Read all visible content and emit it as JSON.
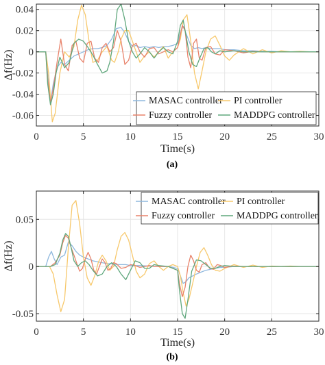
{
  "colors": {
    "MASAC controller": "#8fb8de",
    "PI controller": "#f7c86b",
    "Fuzzy controller": "#e8826a",
    "MADDPG controller": "#5fa77c"
  },
  "chart_data": [
    {
      "type": "line",
      "caption": "(a)",
      "xlabel": "Time(s)",
      "ylabel": "Δf(Hz)",
      "xlim": [
        0,
        30
      ],
      "ylim": [
        -0.07,
        0.045
      ],
      "xticks": [
        0,
        5,
        10,
        15,
        20,
        25,
        30
      ],
      "xtick_labels": [
        "0",
        "5",
        "10",
        "15",
        "20",
        "25",
        "30"
      ],
      "yticks": [
        -0.06,
        -0.04,
        -0.02,
        0,
        0.02,
        0.04
      ],
      "ytick_labels": [
        "-0.06",
        "-0.04",
        "-0.02",
        "0",
        "0.02",
        "0.04"
      ],
      "grid": true,
      "legend": [
        "MASAC controller",
        "PI controller",
        "Fuzzy controller",
        "MADDPG controller"
      ],
      "legend_position": "bottom-right",
      "series": [
        {
          "name": "MASAC controller",
          "x": [
            0,
            1,
            1.2,
            1.5,
            1.8,
            2.2,
            2.6,
            3.0,
            3.5,
            4.0,
            4.5,
            5.0,
            5.5,
            6.0,
            6.5,
            7.0,
            7.5,
            8.0,
            8.5,
            9.0,
            9.4,
            9.8,
            10.2,
            10.6,
            11.0,
            11.5,
            12.0,
            12.5,
            13.0,
            13.5,
            14.0,
            14.5,
            15.0,
            15.3,
            15.6,
            16.0,
            16.4,
            16.8,
            17.2,
            17.6,
            18.0,
            18.5,
            19.0,
            19.5,
            20.0,
            21,
            22,
            23,
            24,
            25,
            26,
            27,
            28,
            29,
            30
          ],
          "y": [
            0,
            0,
            -0.02,
            -0.048,
            -0.03,
            -0.015,
            -0.01,
            -0.012,
            -0.008,
            -0.004,
            -0.002,
            0.0,
            0.002,
            0.003,
            0.003,
            0.004,
            0.006,
            0.012,
            0.022,
            0.023,
            0.018,
            0.01,
            0.005,
            0.006,
            0.004,
            0.005,
            0.004,
            0.005,
            0.004,
            0.005,
            0.005,
            0.006,
            0.008,
            0.018,
            0.024,
            0.015,
            0.006,
            0.003,
            0.004,
            0.003,
            0.004,
            0.003,
            0.003,
            0.003,
            0.002,
            0.002,
            0.001,
            0.001,
            0.0005,
            0.0005,
            0.0,
            0.0,
            0.0,
            0.0,
            0.0
          ]
        },
        {
          "name": "PI controller",
          "x": [
            0,
            1,
            1.3,
            1.7,
            2.0,
            2.5,
            3.0,
            3.5,
            4.0,
            4.4,
            4.8,
            5.2,
            5.6,
            6.0,
            6.5,
            7.0,
            7.5,
            8.0,
            8.3,
            8.7,
            9.0,
            9.4,
            9.8,
            10.2,
            10.6,
            11.0,
            11.5,
            12.0,
            12.5,
            13.0,
            13.5,
            14.0,
            14.5,
            15.0,
            15.3,
            15.6,
            16.0,
            16.4,
            16.8,
            17.2,
            17.6,
            18.0,
            18.5,
            19.0,
            19.5,
            20.0,
            20.5,
            21.0,
            22,
            23,
            24,
            25,
            26,
            27,
            28,
            29,
            30
          ],
          "y": [
            0,
            0,
            -0.02,
            -0.066,
            -0.058,
            -0.02,
            0.0,
            -0.005,
            0.005,
            0.03,
            0.044,
            0.035,
            0.01,
            -0.01,
            -0.008,
            0.0,
            0.005,
            -0.008,
            -0.01,
            0.0,
            0.012,
            0.02,
            0.02,
            0.01,
            0.0,
            -0.01,
            -0.004,
            0.0,
            -0.005,
            0.0,
            0.005,
            -0.006,
            0.0,
            0.004,
            0.012,
            0.03,
            0.035,
            0.01,
            -0.02,
            -0.035,
            -0.018,
            0.0,
            0.012,
            0.015,
            0.006,
            -0.004,
            -0.008,
            -0.003,
            0.003,
            -0.002,
            0.002,
            -0.001,
            0.001,
            0.0,
            0.0005,
            0.0,
            0.0
          ]
        },
        {
          "name": "Fuzzy controller",
          "x": [
            0,
            1,
            1.2,
            1.5,
            1.8,
            2.2,
            2.6,
            3.0,
            3.4,
            3.8,
            4.2,
            4.6,
            5.0,
            5.4,
            5.8,
            6.2,
            6.6,
            7.0,
            7.4,
            7.8,
            8.2,
            8.6,
            9.0,
            9.4,
            9.8,
            10.2,
            10.6,
            11.0,
            11.5,
            12.0,
            12.5,
            13.0,
            13.5,
            14.0,
            14.5,
            15.0,
            15.2,
            15.5,
            15.8,
            16.1,
            16.4,
            16.7,
            17.0,
            17.3,
            17.6,
            18.0,
            18.5,
            19.0,
            19.5,
            20.0,
            21,
            22,
            23,
            24,
            25,
            26,
            27,
            28,
            29,
            30
          ],
          "y": [
            0,
            0,
            -0.025,
            -0.048,
            -0.035,
            -0.01,
            0.012,
            -0.012,
            -0.018,
            0.006,
            0.01,
            -0.006,
            -0.01,
            0.008,
            0.01,
            -0.006,
            -0.01,
            0.004,
            0.008,
            0.0,
            0.004,
            0.02,
            0.01,
            -0.012,
            -0.008,
            0.006,
            0.008,
            0.0,
            -0.005,
            0.003,
            0.004,
            -0.002,
            0.0,
            0.002,
            0.0,
            0.004,
            0.012,
            0.025,
            0.02,
            -0.005,
            -0.015,
            0.008,
            0.012,
            -0.006,
            -0.008,
            0.004,
            0.005,
            -0.002,
            -0.003,
            0.002,
            0.001,
            -0.001,
            0.0005,
            0.0,
            0.0,
            0.0,
            0.0,
            0.0,
            0.0,
            0.0
          ]
        },
        {
          "name": "MADDPG controller",
          "x": [
            0,
            1,
            1.2,
            1.5,
            1.8,
            2.1,
            2.5,
            3.0,
            3.5,
            4.0,
            4.5,
            5.0,
            5.5,
            6.0,
            6.5,
            7.0,
            7.5,
            7.8,
            8.2,
            8.6,
            9.0,
            9.4,
            9.8,
            10.2,
            10.6,
            11.0,
            11.5,
            12.0,
            12.5,
            13.0,
            13.5,
            14.0,
            14.5,
            15.0,
            15.3,
            15.6,
            15.9,
            16.2,
            16.6,
            17.0,
            17.4,
            17.8,
            18.2,
            18.6,
            19.0,
            19.5,
            20.0,
            21,
            22,
            23,
            24,
            25,
            26,
            27,
            28,
            29,
            30
          ],
          "y": [
            0,
            0,
            -0.03,
            -0.05,
            -0.04,
            -0.02,
            -0.005,
            -0.015,
            -0.01,
            0.008,
            0.012,
            0.01,
            0.004,
            -0.003,
            -0.012,
            -0.02,
            -0.018,
            -0.01,
            0.01,
            0.04,
            0.045,
            0.03,
            0.01,
            0.0,
            -0.006,
            -0.002,
            0.004,
            0.0,
            -0.006,
            0.0,
            0.004,
            0.0,
            -0.002,
            0.01,
            0.025,
            0.03,
            0.015,
            0.0,
            -0.012,
            -0.014,
            -0.005,
            0.003,
            0.004,
            0.0,
            -0.002,
            0.001,
            0.0,
            0.001,
            0.0,
            0.0,
            0.0,
            0.0,
            0.0,
            0.0,
            0.0,
            0.0,
            0.0
          ]
        }
      ]
    },
    {
      "type": "line",
      "caption": "(b)",
      "xlabel": "Time(s)",
      "ylabel": "Δf(Hz)",
      "xlim": [
        0,
        30
      ],
      "ylim": [
        -0.058,
        0.08
      ],
      "xticks": [
        0,
        5,
        10,
        15,
        20,
        25,
        30
      ],
      "xtick_labels": [
        "0",
        "5",
        "10",
        "15",
        "20",
        "25",
        "30"
      ],
      "yticks": [
        -0.05,
        0,
        0.05
      ],
      "ytick_labels": [
        "-0.05",
        "0",
        "0.05"
      ],
      "grid": true,
      "legend": [
        "MASAC controller",
        "PI controller",
        "Fuzzy controller",
        "MADDPG controller"
      ],
      "legend_position": "top-right",
      "series": [
        {
          "name": "MASAC controller",
          "x": [
            0,
            1,
            1.3,
            1.6,
            1.9,
            2.2,
            2.6,
            3.0,
            3.4,
            3.8,
            4.2,
            4.6,
            5.0,
            5.5,
            6.0,
            6.5,
            7.0,
            7.5,
            8.0,
            8.5,
            9.0,
            9.5,
            10.0,
            11,
            12,
            13,
            14,
            15.0,
            15.3,
            15.6,
            15.9,
            16.2,
            16.6,
            17.0,
            17.5,
            18.0,
            18.5,
            19.0,
            19.5,
            20.0,
            21,
            22,
            23,
            24,
            25,
            26,
            27,
            28,
            29,
            30
          ],
          "y": [
            0,
            0,
            0.01,
            0.016,
            0.008,
            0.002,
            0.01,
            0.012,
            0.026,
            0.022,
            0.016,
            0.012,
            0.01,
            0.008,
            0.006,
            0.005,
            0.004,
            0.003,
            0.003,
            0.002,
            0.002,
            0.002,
            0.001,
            0.001,
            0.0005,
            0.0,
            0.0,
            -0.002,
            -0.01,
            -0.018,
            -0.016,
            -0.012,
            -0.01,
            -0.008,
            -0.006,
            -0.004,
            -0.003,
            -0.002,
            -0.001,
            -0.001,
            0.0,
            0.0,
            0.0,
            0.0,
            0.0,
            0.0,
            0.0,
            0.0,
            0.0,
            0.0
          ]
        },
        {
          "name": "PI controller",
          "x": [
            0,
            1,
            1.4,
            1.8,
            2.2,
            2.6,
            3.0,
            3.4,
            3.8,
            4.2,
            4.6,
            5.0,
            5.4,
            5.8,
            6.2,
            6.6,
            7.0,
            7.4,
            7.8,
            8.2,
            8.6,
            9.0,
            9.4,
            9.8,
            10.2,
            10.6,
            11.0,
            11.5,
            12.0,
            12.5,
            13.0,
            13.5,
            14.0,
            14.5,
            15.0,
            15.3,
            15.6,
            15.9,
            16.2,
            16.6,
            17.0,
            17.4,
            17.8,
            18.2,
            18.6,
            19.0,
            19.5,
            20.0,
            21,
            22,
            23,
            24,
            25,
            26,
            27,
            28,
            29,
            30
          ],
          "y": [
            0,
            0,
            0.0,
            -0.008,
            -0.03,
            -0.048,
            -0.035,
            0.02,
            0.065,
            0.07,
            0.045,
            0.01,
            -0.012,
            -0.02,
            -0.01,
            0.005,
            0.012,
            0.006,
            -0.004,
            0.0,
            0.018,
            0.032,
            0.036,
            0.028,
            0.012,
            -0.005,
            -0.012,
            -0.008,
            0.003,
            0.006,
            0.0,
            -0.004,
            0.0,
            0.002,
            0.0,
            -0.01,
            -0.028,
            -0.042,
            -0.035,
            -0.018,
            0.0,
            0.015,
            0.02,
            0.012,
            0.002,
            -0.004,
            -0.005,
            -0.002,
            0.002,
            -0.001,
            0.0015,
            -0.001,
            0.0005,
            0.0,
            0.0005,
            0.0,
            0.0,
            0.0
          ]
        },
        {
          "name": "Fuzzy controller",
          "x": [
            0,
            1,
            1.5,
            2.0,
            2.5,
            2.8,
            3.1,
            3.4,
            3.7,
            4.0,
            4.3,
            4.6,
            4.9,
            5.2,
            5.5,
            5.8,
            6.1,
            6.4,
            6.7,
            7.0,
            7.3,
            7.6,
            7.9,
            8.2,
            8.5,
            9.0,
            9.5,
            10.0,
            10.5,
            11.0,
            11.5,
            12.0,
            12.5,
            13.0,
            14.0,
            15.0,
            15.2,
            15.5,
            15.8,
            16.1,
            16.4,
            16.7,
            17.0,
            17.3,
            17.6,
            18.0,
            18.4,
            18.8,
            19.2,
            19.6,
            20.0,
            21,
            22,
            23,
            24,
            25,
            26,
            27,
            28,
            29,
            30
          ],
          "y": [
            0,
            0,
            0.0,
            0.004,
            0.012,
            0.025,
            0.033,
            0.03,
            0.02,
            0.012,
            0.003,
            -0.005,
            -0.002,
            0.008,
            0.015,
            0.008,
            -0.004,
            -0.008,
            0.0,
            0.008,
            0.004,
            -0.004,
            -0.002,
            0.004,
            0.003,
            -0.002,
            -0.001,
            0.002,
            0.001,
            -0.001,
            0.0,
            0.001,
            0.0,
            0.0,
            0.0,
            -0.004,
            -0.018,
            -0.032,
            -0.022,
            0.0,
            0.012,
            0.006,
            -0.004,
            -0.006,
            0.002,
            0.004,
            -0.002,
            -0.003,
            0.002,
            0.001,
            -0.001,
            0.0005,
            0.0,
            0.0,
            0.0,
            0.0,
            0.0,
            0.0,
            0.0,
            0.0,
            0.0
          ]
        },
        {
          "name": "MADDPG controller",
          "x": [
            0,
            1,
            1.5,
            2.0,
            2.5,
            2.8,
            3.1,
            3.4,
            3.7,
            4.0,
            4.4,
            4.8,
            5.2,
            5.6,
            6.0,
            6.5,
            7.0,
            7.5,
            8.0,
            8.5,
            9.0,
            9.5,
            10.0,
            10.5,
            11.0,
            11.5,
            12.0,
            12.5,
            13.0,
            14.0,
            15.0,
            15.2,
            15.5,
            15.8,
            16.1,
            16.5,
            17.0,
            17.5,
            18.0,
            18.5,
            19.0,
            19.5,
            20.0,
            21,
            22,
            23,
            24,
            25,
            26,
            27,
            28,
            29,
            30
          ],
          "y": [
            0,
            0,
            0.0,
            0.002,
            0.014,
            0.028,
            0.035,
            0.032,
            0.02,
            0.006,
            0.0,
            0.004,
            0.006,
            0.002,
            -0.004,
            -0.01,
            -0.008,
            0.0,
            0.004,
            0.0,
            -0.008,
            -0.014,
            -0.004,
            0.006,
            0.004,
            -0.002,
            -0.002,
            0.002,
            0.001,
            0.0,
            -0.004,
            -0.025,
            -0.05,
            -0.055,
            -0.035,
            -0.005,
            0.007,
            0.006,
            0.002,
            -0.002,
            -0.002,
            0.0,
            0.001,
            0.0,
            0.0,
            0.0,
            0.0,
            0.0,
            0.0,
            0.0,
            0.0,
            0.0,
            0.0
          ]
        }
      ]
    }
  ]
}
